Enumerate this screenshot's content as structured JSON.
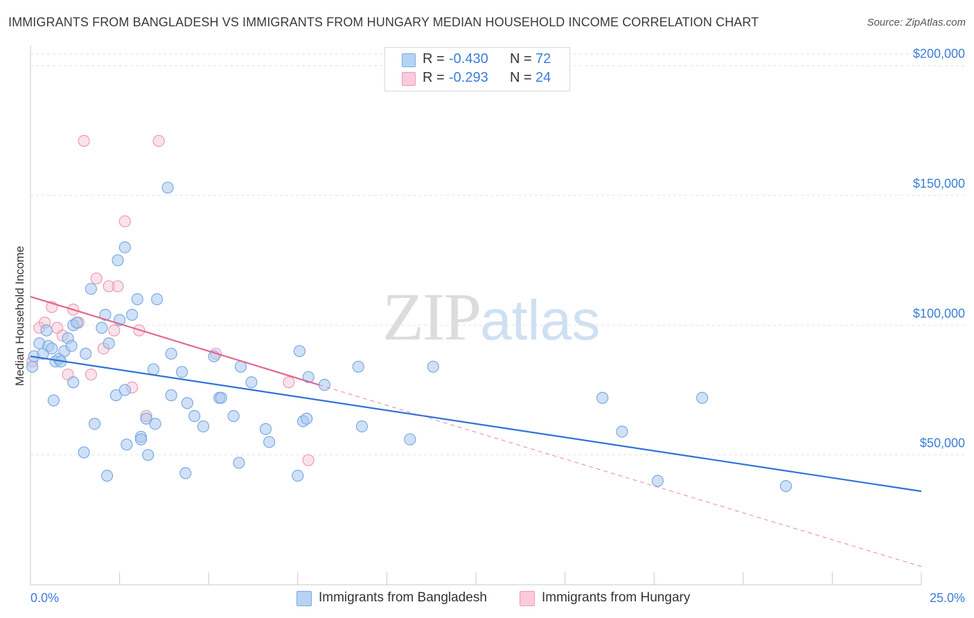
{
  "header": {
    "title": "IMMIGRANTS FROM BANGLADESH VS IMMIGRANTS FROM HUNGARY MEDIAN HOUSEHOLD INCOME CORRELATION CHART",
    "source": "Source: ZipAtlas.com"
  },
  "watermark": {
    "part1": "ZIP",
    "part2": "atlas"
  },
  "legend": {
    "rows": [
      {
        "r_label": "R =",
        "r_value": "-0.430",
        "n_label": "N =",
        "n_value": "72"
      },
      {
        "r_label": "R =",
        "r_value": "-0.293",
        "n_label": "N =",
        "n_value": "24"
      }
    ]
  },
  "bottom_legend": [
    {
      "label": "Immigrants from Bangladesh"
    },
    {
      "label": "Immigrants from Hungary"
    }
  ],
  "colors": {
    "blue_fill": "#a9c8f0",
    "blue_stroke": "#7aa9e2",
    "blue_line": "#2f72d6",
    "pink_fill": "#f6bfd0",
    "pink_stroke": "#ec9ab5",
    "pink_line": "#e06690",
    "grid": "#e2e2e2",
    "tick_text": "#3b7dd8"
  },
  "chart_data": {
    "type": "scatter",
    "title": "IMMIGRANTS FROM BANGLADESH VS IMMIGRANTS FROM HUNGARY MEDIAN HOUSEHOLD INCOME CORRELATION CHART",
    "xlabel": "",
    "ylabel": "Median Household Income",
    "xlim": [
      0,
      25
    ],
    "ylim": [
      0,
      205000
    ],
    "x_tick_labels": [
      "0.0%",
      "25.0%"
    ],
    "y_ticks": [
      50000,
      100000,
      150000,
      200000
    ],
    "y_tick_labels": [
      "$50,000",
      "$100,000",
      "$150,000",
      "$200,000"
    ],
    "grid": true,
    "legend_position": "top-center",
    "series": [
      {
        "name": "Immigrants from Bangladesh",
        "color": "#a9c8f0",
        "r": -0.43,
        "n": 72,
        "trend": {
          "x": [
            0,
            25
          ],
          "y": [
            88000,
            36000
          ]
        },
        "points": [
          [
            0.05,
            84000
          ],
          [
            0.1,
            88000
          ],
          [
            0.25,
            93000
          ],
          [
            0.35,
            89000
          ],
          [
            0.45,
            98000
          ],
          [
            0.5,
            92000
          ],
          [
            0.6,
            91000
          ],
          [
            0.7,
            86000
          ],
          [
            0.8,
            87000
          ],
          [
            0.85,
            86000
          ],
          [
            0.95,
            90000
          ],
          [
            1.05,
            95000
          ],
          [
            1.15,
            92000
          ],
          [
            1.2,
            100000
          ],
          [
            1.3,
            101000
          ],
          [
            1.55,
            89000
          ],
          [
            0.65,
            71000
          ],
          [
            1.2,
            78000
          ],
          [
            2.0,
            99000
          ],
          [
            2.1,
            104000
          ],
          [
            2.2,
            93000
          ],
          [
            2.5,
            102000
          ],
          [
            2.85,
            104000
          ],
          [
            2.4,
            73000
          ],
          [
            2.65,
            75000
          ],
          [
            1.7,
            114000
          ],
          [
            2.45,
            125000
          ],
          [
            2.65,
            130000
          ],
          [
            3.0,
            110000
          ],
          [
            3.55,
            110000
          ],
          [
            3.85,
            153000
          ],
          [
            1.5,
            51000
          ],
          [
            1.8,
            62000
          ],
          [
            2.15,
            42000
          ],
          [
            2.7,
            54000
          ],
          [
            3.1,
            57000
          ],
          [
            3.1,
            56000
          ],
          [
            3.25,
            64000
          ],
          [
            3.3,
            50000
          ],
          [
            3.5,
            62000
          ],
          [
            3.45,
            83000
          ],
          [
            3.95,
            73000
          ],
          [
            3.95,
            89000
          ],
          [
            4.25,
            82000
          ],
          [
            4.4,
            70000
          ],
          [
            4.35,
            43000
          ],
          [
            4.6,
            65000
          ],
          [
            4.85,
            61000
          ],
          [
            5.3,
            72000
          ],
          [
            5.35,
            72000
          ],
          [
            5.15,
            88000
          ],
          [
            5.7,
            65000
          ],
          [
            5.85,
            47000
          ],
          [
            5.9,
            84000
          ],
          [
            6.2,
            78000
          ],
          [
            6.6,
            60000
          ],
          [
            6.7,
            55000
          ],
          [
            7.5,
            42000
          ],
          [
            7.65,
            63000
          ],
          [
            7.75,
            64000
          ],
          [
            7.55,
            90000
          ],
          [
            7.8,
            80000
          ],
          [
            8.25,
            77000
          ],
          [
            9.2,
            84000
          ],
          [
            9.3,
            61000
          ],
          [
            10.65,
            56000
          ],
          [
            11.3,
            84000
          ],
          [
            16.05,
            72000
          ],
          [
            16.6,
            59000
          ],
          [
            17.6,
            40000
          ],
          [
            18.85,
            72000
          ],
          [
            21.2,
            38000
          ]
        ]
      },
      {
        "name": "Immigrants from Hungary",
        "color": "#f6bfd0",
        "r": -0.293,
        "n": 24,
        "trend": {
          "x": [
            0,
            8.1,
            25
          ],
          "y": [
            111000,
            77000,
            7000
          ],
          "solid_until_x": 8.1
        },
        "points": [
          [
            0.05,
            86000
          ],
          [
            0.25,
            99000
          ],
          [
            0.4,
            101000
          ],
          [
            0.6,
            107000
          ],
          [
            0.75,
            99000
          ],
          [
            0.9,
            96000
          ],
          [
            1.05,
            81000
          ],
          [
            1.2,
            106000
          ],
          [
            1.35,
            101000
          ],
          [
            1.5,
            171000
          ],
          [
            1.7,
            81000
          ],
          [
            1.85,
            118000
          ],
          [
            2.05,
            91000
          ],
          [
            2.2,
            115000
          ],
          [
            2.35,
            98000
          ],
          [
            2.45,
            115000
          ],
          [
            2.65,
            140000
          ],
          [
            2.85,
            76000
          ],
          [
            3.05,
            98000
          ],
          [
            3.25,
            65000
          ],
          [
            3.6,
            171000
          ],
          [
            5.2,
            89000
          ],
          [
            7.25,
            78000
          ],
          [
            7.8,
            48000
          ]
        ]
      }
    ]
  }
}
